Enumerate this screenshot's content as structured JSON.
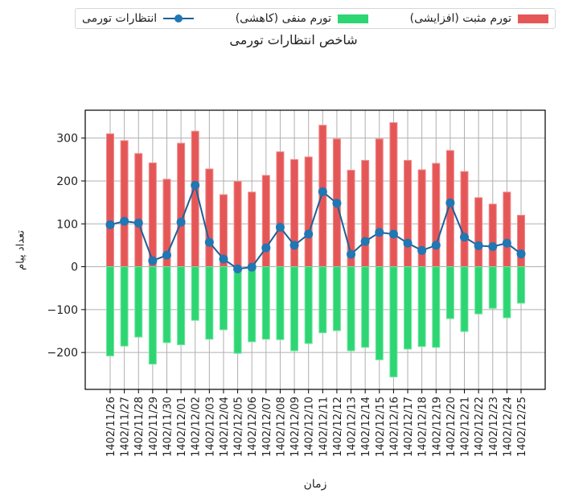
{
  "chart_data": {
    "type": "bar",
    "title": "شاخص انتظارات تورمی",
    "xlabel": "زمان",
    "ylabel": "تعداد پیام",
    "ylim": [
      -286,
      365
    ],
    "yticks": [
      -200,
      -100,
      0,
      100,
      200,
      300
    ],
    "grid": true,
    "legend_position": "top",
    "categories": [
      "1402/11/26",
      "1402/11/27",
      "1402/11/28",
      "1402/11/29",
      "1402/11/30",
      "1402/12/01",
      "1402/12/02",
      "1402/12/03",
      "1402/12/04",
      "1402/12/05",
      "1402/12/06",
      "1402/12/07",
      "1402/12/08",
      "1402/12/09",
      "1402/12/10",
      "1402/12/11",
      "1402/12/12",
      "1402/12/13",
      "1402/12/14",
      "1402/12/15",
      "1402/12/16",
      "1402/12/17",
      "1402/12/18",
      "1402/12/19",
      "1402/12/20",
      "1402/12/21",
      "1402/12/22",
      "1402/12/23",
      "1402/12/24",
      "1402/12/25"
    ],
    "series": [
      {
        "name": "تورم مثبت (افزایشی)",
        "kind": "bar",
        "color": "#e55757",
        "values": [
          310,
          294,
          264,
          242,
          204,
          288,
          316,
          228,
          168,
          199,
          174,
          213,
          268,
          250,
          256,
          330,
          298,
          225,
          248,
          298,
          336,
          248,
          226,
          241,
          271,
          222,
          161,
          146,
          174,
          120
        ]
      },
      {
        "name": "تورم منفی (کاهشی)",
        "kind": "bar",
        "color": "#2ed573",
        "values": [
          -208,
          -185,
          -164,
          -227,
          -177,
          -182,
          -125,
          -169,
          -147,
          -202,
          -175,
          -169,
          -170,
          -196,
          -179,
          -154,
          -149,
          -196,
          -188,
          -217,
          -257,
          -192,
          -186,
          -188,
          -121,
          -151,
          -110,
          -97,
          -119,
          -85
        ]
      },
      {
        "name": "انتظارات تورمی",
        "kind": "line",
        "color": "#1f77b4",
        "line_color": "#1f5f95",
        "values": [
          98,
          106,
          102,
          14,
          27,
          104,
          190,
          57,
          18,
          -5,
          -1,
          44,
          92,
          50,
          76,
          175,
          148,
          29,
          59,
          80,
          76,
          55,
          38,
          50,
          149,
          69,
          49,
          47,
          55,
          30
        ]
      }
    ]
  },
  "legend": {
    "items": [
      {
        "label": "تورم مثبت (افزایشی)",
        "color": "#e55757",
        "type": "swatch"
      },
      {
        "label": "تورم منفی (کاهشی)",
        "color": "#2ed573",
        "type": "swatch"
      },
      {
        "label": "انتظارات تورمی",
        "color": "#1f77b4",
        "type": "line"
      }
    ]
  }
}
